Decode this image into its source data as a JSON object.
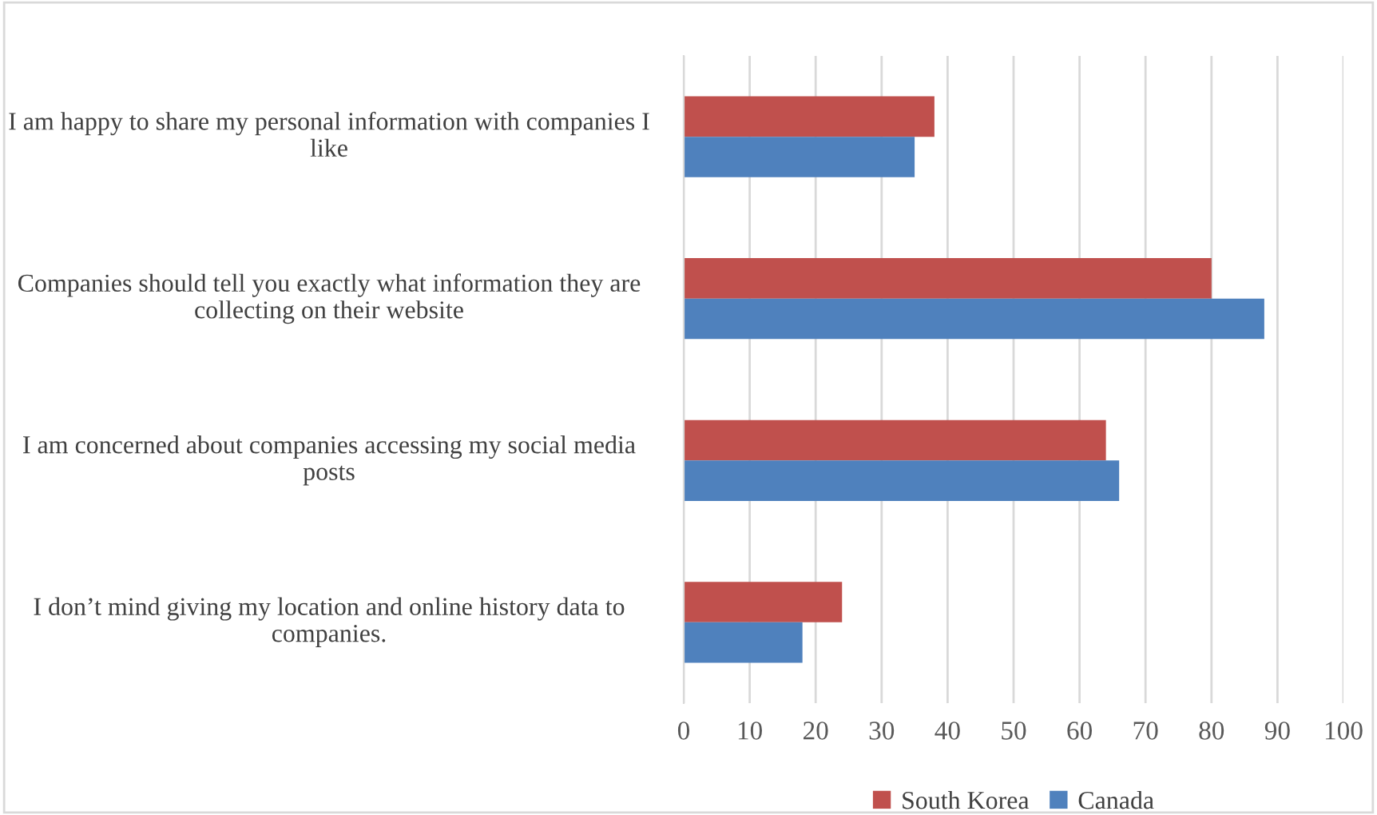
{
  "chart_data": {
    "type": "bar",
    "orientation": "horizontal",
    "categories": [
      "I am happy to share my personal information with companies I like",
      "Companies should tell you exactly what information they are collecting on their website",
      "I am concerned about companies accessing my social media posts",
      "I don’t mind giving my location and online history data to companies."
    ],
    "series": [
      {
        "name": "South Korea",
        "color": "#c0504d",
        "values": [
          38,
          80,
          64,
          24
        ]
      },
      {
        "name": "Canada",
        "color": "#4f81bd",
        "values": [
          35,
          88,
          66,
          18
        ]
      }
    ],
    "xlim": [
      0,
      100
    ],
    "xticks": [
      0,
      10,
      20,
      30,
      40,
      50,
      60,
      70,
      80,
      90,
      100
    ],
    "grid": "x",
    "legend": "bottom"
  }
}
